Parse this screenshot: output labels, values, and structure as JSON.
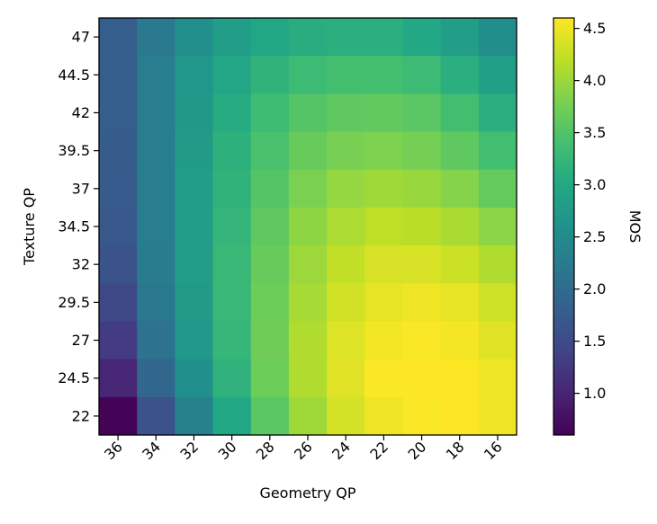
{
  "chart_data": {
    "type": "heatmap",
    "title": "",
    "xlabel": "Geometry QP",
    "ylabel": "Texture QP",
    "x_categories": [
      "36",
      "34",
      "32",
      "30",
      "28",
      "26",
      "24",
      "22",
      "20",
      "18",
      "16"
    ],
    "y_categories": [
      "47",
      "44.5",
      "42",
      "39.5",
      "37",
      "34.5",
      "32",
      "29.5",
      "27",
      "24.5",
      "22"
    ],
    "values": [
      [
        1.78,
        2.22,
        2.56,
        2.8,
        2.98,
        3.08,
        3.12,
        3.12,
        3.0,
        2.8,
        2.55
      ],
      [
        1.78,
        2.28,
        2.68,
        2.96,
        3.18,
        3.32,
        3.4,
        3.4,
        3.32,
        3.12,
        2.84
      ],
      [
        1.78,
        2.3,
        2.74,
        3.06,
        3.34,
        3.52,
        3.6,
        3.62,
        3.56,
        3.38,
        3.12
      ],
      [
        1.76,
        2.3,
        2.78,
        3.14,
        3.44,
        3.66,
        3.78,
        3.82,
        3.76,
        3.6,
        3.38
      ],
      [
        1.74,
        2.3,
        2.8,
        3.18,
        3.52,
        3.8,
        3.96,
        4.02,
        3.98,
        3.86,
        3.64
      ],
      [
        1.7,
        2.28,
        2.8,
        3.22,
        3.6,
        3.92,
        4.1,
        4.2,
        4.18,
        4.08,
        3.9
      ],
      [
        1.64,
        2.26,
        2.8,
        3.26,
        3.66,
        4.0,
        4.22,
        4.36,
        4.36,
        4.28,
        4.12
      ],
      [
        1.48,
        2.2,
        2.78,
        3.26,
        3.7,
        4.06,
        4.32,
        4.46,
        4.52,
        4.46,
        4.3
      ],
      [
        1.3,
        2.1,
        2.72,
        3.24,
        3.72,
        4.12,
        4.4,
        4.54,
        4.58,
        4.55,
        4.42
      ],
      [
        1.02,
        1.92,
        2.58,
        3.16,
        3.7,
        4.12,
        4.42,
        4.58,
        4.6,
        4.6,
        4.5
      ],
      [
        0.62,
        1.6,
        2.34,
        2.98,
        3.56,
        4.02,
        4.34,
        4.52,
        4.58,
        4.6,
        4.52
      ]
    ],
    "vmin": 0.6,
    "vmax": 4.6,
    "colormap": "viridis",
    "colorbar": {
      "label": "MOS",
      "ticks": [
        1.0,
        1.5,
        2.0,
        2.5,
        3.0,
        3.5,
        4.0,
        4.5
      ],
      "tick_labels": [
        "1.0",
        "1.5",
        "2.0",
        "2.5",
        "3.0",
        "3.5",
        "4.0",
        "4.5"
      ]
    }
  }
}
